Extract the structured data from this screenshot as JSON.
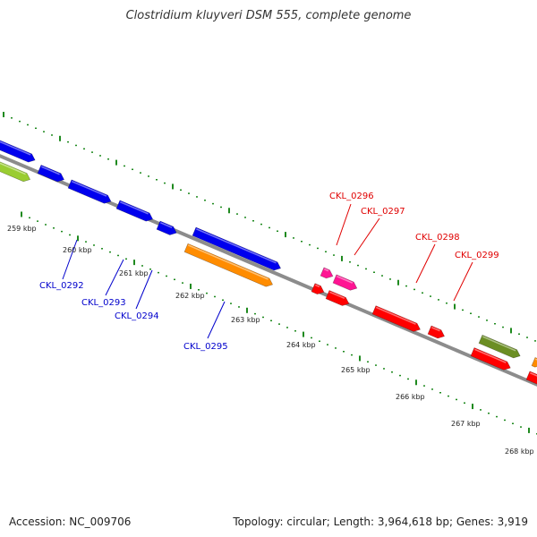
{
  "title": "Clostridium kluyveri DSM 555, complete genome",
  "accession_label": "Accession: NC_009706",
  "topology_label": "Topology: circular; Length: 3,964,618 bp; Genes: 3,919",
  "colors": {
    "backbone": "#8c8c8c",
    "tick": "#1f8a1f",
    "blue_gene": "#0000ee",
    "red_gene": "#ff0000",
    "orange_gene": "#ff8c00",
    "pink_gene": "#ff1493",
    "lime_gene": "#9acd32",
    "olive_gene": "#6b8e23",
    "blue_label": "#0000cc",
    "red_label": "#e00000"
  },
  "scale_labels": [
    "259 kbp",
    "260 kbp",
    "261 kbp",
    "262 kbp",
    "263 kbp",
    "264 kbp",
    "265 kbp",
    "266 kbp",
    "267 kbp",
    "268 kbp"
  ],
  "gene_labels": [
    {
      "text": "CKL_0292",
      "color": "blue"
    },
    {
      "text": "CKL_0293",
      "color": "blue"
    },
    {
      "text": "CKL_0294",
      "color": "blue"
    },
    {
      "text": "CKL_0295",
      "color": "blue"
    },
    {
      "text": "CKL_0296",
      "color": "red"
    },
    {
      "text": "CKL_0297",
      "color": "red"
    },
    {
      "text": "CKL_0298",
      "color": "red"
    },
    {
      "text": "CKL_0299",
      "color": "red"
    }
  ]
}
